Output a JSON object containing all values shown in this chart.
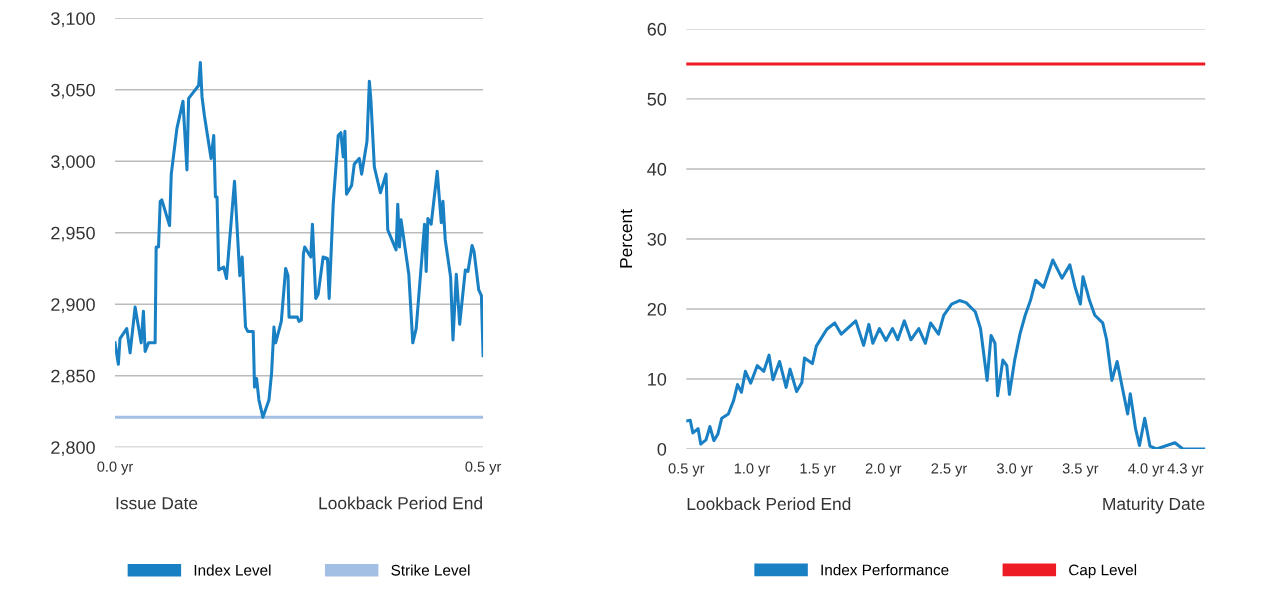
{
  "chart_data": [
    {
      "type": "line",
      "x": [
        0.0,
        0.0045,
        0.0068,
        0.0159,
        0.0205,
        0.0273,
        0.0355,
        0.0386,
        0.0409,
        0.0455,
        0.0545,
        0.0559,
        0.0591,
        0.0614,
        0.0636,
        0.0741,
        0.0764,
        0.0841,
        0.0923,
        0.0977,
        0.1,
        0.1136,
        0.1159,
        0.1182,
        0.1214,
        0.1305,
        0.1341,
        0.1364,
        0.1386,
        0.1409,
        0.1477,
        0.1514,
        0.1623,
        0.1695,
        0.1727,
        0.1773,
        0.1805,
        0.1877,
        0.1895,
        0.1923,
        0.1955,
        0.2009,
        0.2091,
        0.2127,
        0.2159,
        0.2182,
        0.2259,
        0.2318,
        0.235,
        0.2364,
        0.2477,
        0.25,
        0.2532,
        0.2559,
        0.2577,
        0.2659,
        0.2682,
        0.2727,
        0.2759,
        0.2827,
        0.2886,
        0.2909,
        0.2964,
        0.3032,
        0.3068,
        0.31,
        0.3123,
        0.3145,
        0.3214,
        0.325,
        0.3318,
        0.335,
        0.3423,
        0.3455,
        0.3477,
        0.3523,
        0.3605,
        0.3682,
        0.3705,
        0.3818,
        0.3841,
        0.3864,
        0.3886,
        0.3991,
        0.4045,
        0.4091,
        0.4205,
        0.4227,
        0.425,
        0.4295,
        0.4377,
        0.4432,
        0.4455,
        0.4486,
        0.4559,
        0.4591,
        0.4636,
        0.4682,
        0.4759,
        0.4795,
        0.485,
        0.4877,
        0.4941,
        0.4977,
        0.5
      ],
      "series": [
        {
          "name": "Index Level",
          "color": "#1a80c4",
          "values": [
            2873,
            2858,
            2876,
            2883,
            2866,
            2898,
            2873,
            2895,
            2867,
            2873,
            2873,
            2940,
            2940,
            2972,
            2973,
            2955,
            2991,
            3023,
            3042,
            2994,
            3044,
            3053,
            3069,
            3045,
            3032,
            3002,
            3018,
            2975,
            2975,
            2924,
            2926,
            2918,
            2986,
            2920,
            2933,
            2884,
            2881,
            2881,
            2842,
            2848,
            2833,
            2821,
            2833,
            2852,
            2884,
            2873,
            2888,
            2925,
            2920,
            2891,
            2891,
            2888,
            2889,
            2935,
            2940,
            2933,
            2956,
            2904,
            2907,
            2933,
            2932,
            2904,
            2970,
            3018,
            3020,
            3003,
            3021,
            2977,
            2983,
            2998,
            3002,
            2991,
            3014,
            3056,
            3042,
            2996,
            2978,
            2991,
            2952,
            2938,
            2970,
            2940,
            2959,
            2921,
            2873,
            2883,
            2956,
            2923,
            2960,
            2956,
            2993,
            2957,
            2972,
            2945,
            2919,
            2875,
            2921,
            2886,
            2924,
            2923,
            2941,
            2937,
            2910,
            2906,
            2864
          ]
        },
        {
          "name": "Strike Level",
          "color": "#a3bfe3",
          "x": [
            0.0,
            0.5
          ],
          "values": [
            2821,
            2821
          ]
        }
      ],
      "xlim": [
        0.0,
        0.5
      ],
      "xticks": [
        {
          "value": 0.0,
          "label": "0.0 yr"
        },
        {
          "value": 0.5,
          "label": "0.5 yr"
        }
      ],
      "ylim": [
        2800,
        3100
      ],
      "yticks": [
        {
          "value": 2800,
          "label": "2,800"
        },
        {
          "value": 2850,
          "label": "2,850"
        },
        {
          "value": 2900,
          "label": "2,900"
        },
        {
          "value": 2950,
          "label": "2,950"
        },
        {
          "value": 3000,
          "label": "3,000"
        },
        {
          "value": 3050,
          "label": "3,050"
        },
        {
          "value": 3100,
          "label": "3,100"
        }
      ],
      "annotations": [
        "Issue Date",
        "Lookback Period End"
      ],
      "grid": "y",
      "legend": "bottom"
    },
    {
      "type": "line",
      "ylabel": "Percent",
      "x": [
        0.5,
        0.53,
        0.55,
        0.59,
        0.61,
        0.65,
        0.68,
        0.71,
        0.74,
        0.77,
        0.82,
        0.86,
        0.89,
        0.92,
        0.95,
        0.99,
        1.04,
        1.09,
        1.13,
        1.16,
        1.21,
        1.26,
        1.29,
        1.34,
        1.38,
        1.4,
        1.46,
        1.49,
        1.57,
        1.63,
        1.68,
        1.79,
        1.85,
        1.89,
        1.92,
        1.97,
        2.02,
        2.07,
        2.11,
        2.16,
        2.21,
        2.27,
        2.32,
        2.36,
        2.42,
        2.46,
        2.52,
        2.58,
        2.63,
        2.7,
        2.74,
        2.79,
        2.82,
        2.85,
        2.87,
        2.91,
        2.94,
        2.96,
        3.0,
        3.04,
        3.08,
        3.12,
        3.16,
        3.22,
        3.29,
        3.36,
        3.42,
        3.46,
        3.5,
        3.52,
        3.57,
        3.61,
        3.67,
        3.7,
        3.74,
        3.78,
        3.82,
        3.86,
        3.88,
        3.92,
        3.95,
        3.99,
        4.03,
        4.08,
        4.22,
        4.28,
        4.45
      ],
      "series": [
        {
          "name": "Index Performance",
          "color": "#1a80c4",
          "values": [
            4.0,
            4.1,
            2.3,
            2.9,
            0.7,
            1.3,
            3.2,
            1.2,
            2.1,
            4.4,
            5.0,
            6.9,
            9.2,
            8.1,
            11.1,
            9.4,
            11.9,
            11.1,
            13.4,
            9.9,
            12.5,
            8.8,
            11.4,
            8.2,
            9.5,
            13.0,
            12.2,
            14.7,
            17.1,
            18.0,
            16.4,
            18.3,
            14.8,
            17.8,
            15.1,
            17.2,
            15.5,
            17.2,
            15.6,
            18.3,
            15.6,
            17.2,
            15.1,
            18.0,
            16.4,
            19.1,
            20.7,
            21.2,
            20.9,
            19.6,
            17.2,
            9.8,
            16.2,
            15.1,
            7.6,
            12.7,
            11.9,
            7.8,
            12.7,
            16.4,
            19.1,
            21.2,
            24.1,
            23.1,
            27.0,
            24.4,
            26.3,
            23.1,
            20.7,
            24.6,
            21.2,
            19.1,
            18.0,
            15.6,
            9.8,
            12.5,
            8.7,
            5.0,
            7.9,
            2.9,
            0.5,
            4.4,
            0.4,
            0,
            0.9,
            0,
            0
          ]
        },
        {
          "name": "Cap Level",
          "color": "#ed1c24",
          "x": [
            0.5,
            4.45
          ],
          "values": [
            55,
            55
          ]
        }
      ],
      "xlim": [
        0.5,
        4.45
      ],
      "xticks": [
        {
          "value": 0.5,
          "label": "0.5 yr"
        },
        {
          "value": 1.0,
          "label": "1.0 yr"
        },
        {
          "value": 1.5,
          "label": "1.5 yr"
        },
        {
          "value": 2.0,
          "label": "2.0 yr"
        },
        {
          "value": 2.5,
          "label": "2.5 yr"
        },
        {
          "value": 3.0,
          "label": "3.0 yr"
        },
        {
          "value": 3.5,
          "label": "3.5 yr"
        },
        {
          "value": 4.0,
          "label": "4.0 yr"
        },
        {
          "value": 4.3,
          "label": "4.3 yr"
        }
      ],
      "ylim": [
        0,
        60
      ],
      "yticks": [
        0,
        10,
        20,
        30,
        40,
        50,
        60
      ],
      "annotations": [
        "Lookback Period End",
        "Maturity Date"
      ],
      "grid": "y",
      "legend": "bottom"
    }
  ]
}
